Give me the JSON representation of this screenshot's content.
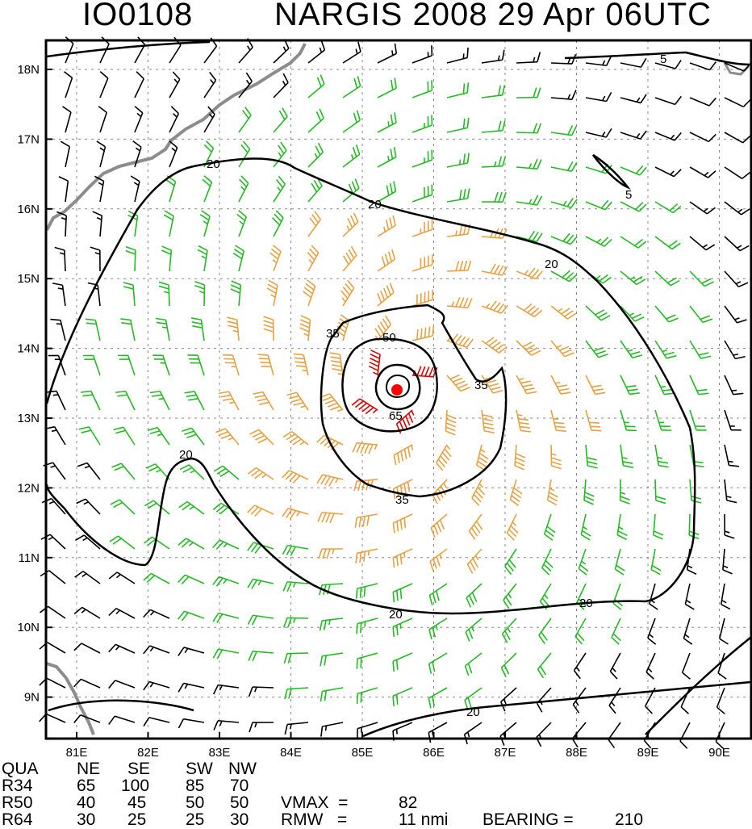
{
  "title": {
    "storm_id": "IO0108",
    "storm_time": "NARGIS 2008 29 Apr 06UTC"
  },
  "map": {
    "lat_labels": [
      "18N",
      "17N",
      "16N",
      "15N",
      "14N",
      "13N",
      "12N",
      "11N",
      "10N",
      "9N"
    ],
    "lon_labels": [
      "81E",
      "82E",
      "83E",
      "84E",
      "85E",
      "86E",
      "87E",
      "88E",
      "89E",
      "90E"
    ],
    "center": {
      "lon": 85.6,
      "lat": 13.4
    },
    "contour_labels": [
      "5",
      "5",
      "20",
      "20",
      "20",
      "20",
      "20",
      "20",
      "20",
      "35",
      "35",
      "35",
      "50",
      "65"
    ],
    "colors": {
      "weak_barb": "#000000",
      "gale_barb": "#22bb22",
      "storm_barb": "#e8a040",
      "hurricane_barb": "#dd0000",
      "center_dot": "#ff0000",
      "coast": "#8c8c8c"
    }
  },
  "table": {
    "header": [
      "QUA",
      "NE",
      "SE",
      "SW",
      "NW"
    ],
    "rows": [
      [
        "R34",
        "65",
        "100",
        "85",
        "70"
      ],
      [
        "R50",
        "40",
        "45",
        "50",
        "50"
      ],
      [
        "R64",
        "30",
        "25",
        "25",
        "30"
      ]
    ],
    "vmax_label": "VMAX  =",
    "vmax_value": "82",
    "rmw_label": "RMW   =",
    "rmw_value": "11 nmi",
    "bearing_label": "BEARING =",
    "bearing_value": "210"
  }
}
